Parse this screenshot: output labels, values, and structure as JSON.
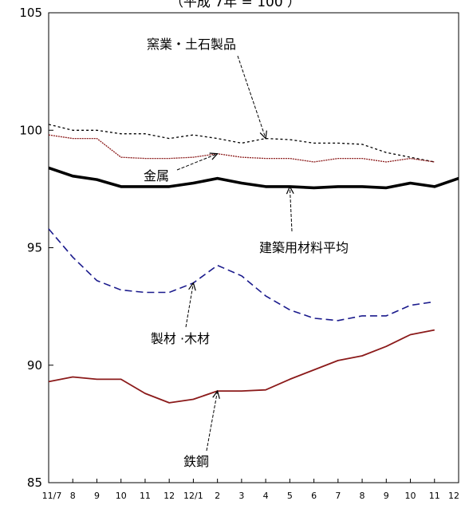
{
  "chart_data": {
    "type": "line",
    "title": "（平成 7年 = 100 ）",
    "ylim": [
      85,
      105
    ],
    "yticks": [
      85,
      90,
      95,
      100,
      105
    ],
    "grid": false,
    "categories": [
      "11/7",
      "8",
      "9",
      "10",
      "11",
      "12",
      "12/1",
      "2",
      "3",
      "4",
      "5",
      "6",
      "7",
      "8",
      "9",
      "10",
      "11",
      "12"
    ],
    "series": [
      {
        "name": "窯業・土石製品",
        "color": "#000000",
        "dash": "3,3",
        "width": 1.3,
        "values": [
          100.25,
          100.0,
          100.0,
          99.85,
          99.85,
          99.65,
          99.8,
          99.65,
          99.45,
          99.65,
          99.6,
          99.45,
          99.45,
          99.4,
          99.05,
          98.85,
          98.65,
          null
        ]
      },
      {
        "name": "金属",
        "color": "#8b1a1a",
        "dash": "2,1",
        "width": 1.3,
        "values": [
          99.8,
          99.65,
          99.65,
          98.85,
          98.8,
          98.8,
          98.85,
          99.0,
          98.85,
          98.8,
          98.8,
          98.65,
          98.8,
          98.8,
          98.65,
          98.8,
          98.65,
          null
        ]
      },
      {
        "name": "建築用材料平均",
        "color": "#000000",
        "dash": "",
        "width": 3.6,
        "values": [
          98.4,
          98.05,
          97.9,
          97.6,
          97.6,
          97.6,
          97.75,
          97.95,
          97.75,
          97.6,
          97.6,
          97.55,
          97.6,
          97.6,
          97.55,
          97.75,
          97.6,
          97.95
        ]
      },
      {
        "name": "製材 ·木材",
        "color": "#1a1a8c",
        "dash": "9,5",
        "width": 1.6,
        "values": [
          95.8,
          94.6,
          93.6,
          93.2,
          93.1,
          93.1,
          93.5,
          94.25,
          93.8,
          92.95,
          92.35,
          92.0,
          91.9,
          92.1,
          92.1,
          92.55,
          92.7,
          null
        ]
      },
      {
        "name": "鉄鋼",
        "color": "#8b1a1a",
        "dash": "",
        "width": 1.8,
        "values": [
          89.3,
          89.5,
          89.4,
          89.4,
          88.8,
          88.4,
          88.55,
          88.9,
          88.9,
          88.95,
          89.4,
          89.8,
          90.2,
          90.4,
          90.8,
          91.3,
          91.5,
          null
        ]
      }
    ],
    "annotations": [
      {
        "text": "窯業・土石製品",
        "series": 0,
        "point": 9
      },
      {
        "text": "金属",
        "series": 1,
        "point": 7
      },
      {
        "text": "建築用材料平均",
        "series": 2,
        "point": 10
      },
      {
        "text": "製材 ·木材",
        "series": 3,
        "point": 6
      },
      {
        "text": "鉄鋼",
        "series": 4,
        "point": 7
      }
    ]
  }
}
